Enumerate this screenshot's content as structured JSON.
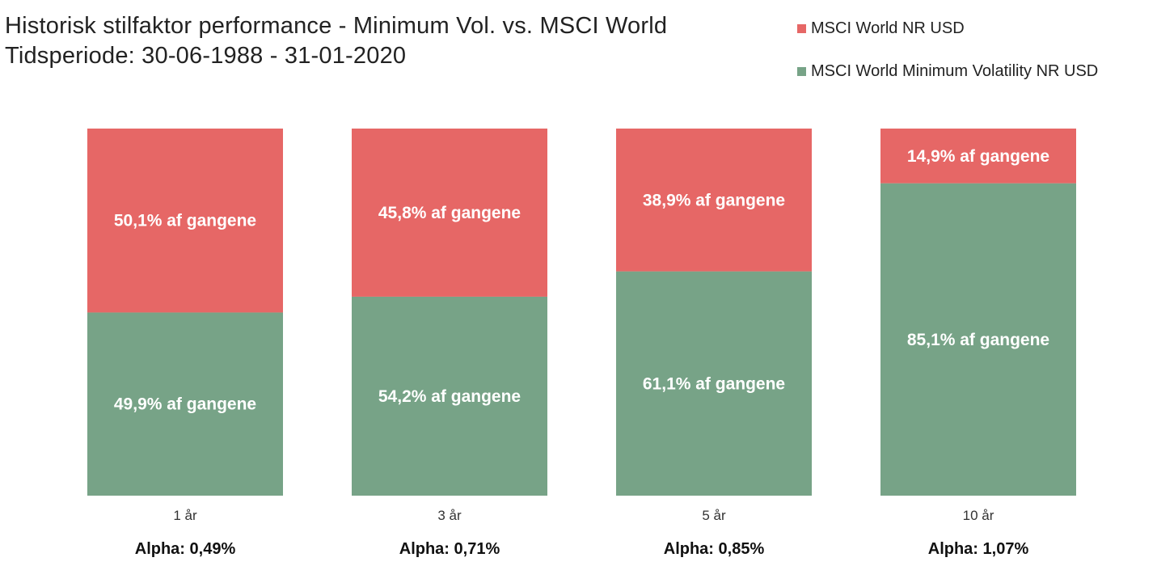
{
  "colors": {
    "msci_world": "#e66766",
    "min_vol": "#77a387"
  },
  "chart_data": {
    "type": "bar",
    "stacked": true,
    "percent_stacked": true,
    "title": "Historisk stilfaktor performance - Minimum Vol. vs. MSCI World",
    "subtitle": "Tidsperiode: 30-06-1988 - 31-01-2020",
    "categories": [
      "1 år",
      "3 år",
      "5 år",
      "10 år"
    ],
    "series": [
      {
        "name": "MSCI World Minimum Volatility NR USD",
        "color": "#77a387",
        "values": [
          49.9,
          54.2,
          61.1,
          85.1
        ],
        "labels": [
          "49,9% af gangene",
          "54,2% af gangene",
          "61,1% af gangene",
          "85,1% af gangene"
        ]
      },
      {
        "name": "MSCI World NR USD",
        "color": "#e66766",
        "values": [
          50.1,
          45.8,
          38.9,
          14.9
        ],
        "labels": [
          "50,1% af gangene",
          "45,8% af gangene",
          "38,9% af gangene",
          "14,9% af gangene"
        ]
      }
    ],
    "annotations": [
      "Alpha: 0,49%",
      "Alpha: 0,71%",
      "Alpha: 0,85%",
      "Alpha: 1,07%"
    ],
    "ylim": [
      0,
      100
    ],
    "grid": false,
    "legend_position": "top-right",
    "legend_order": [
      "MSCI World NR USD",
      "MSCI World Minimum Volatility NR USD"
    ]
  }
}
